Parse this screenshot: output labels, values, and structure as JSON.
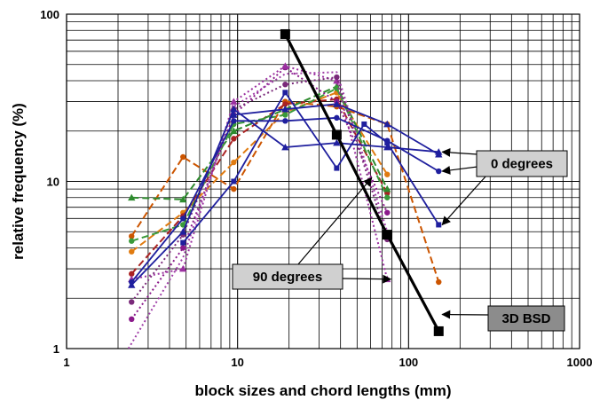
{
  "chart_data": {
    "type": "line",
    "xlabel": "block sizes and chord lengths (mm)",
    "ylabel": "relative frequency (%)",
    "xscale": "log",
    "yscale": "log",
    "xlim": [
      1,
      1000
    ],
    "ylim": [
      1,
      100
    ],
    "grid": true,
    "x_ticks": [
      "1",
      "10",
      "100",
      "1000"
    ],
    "y_ticks": [
      "1",
      "10",
      "100"
    ],
    "series": [
      {
        "group": "bsd",
        "color": "#000000",
        "marker": "square",
        "style": "solid",
        "width": 3.2,
        "points": [
          [
            19,
            76
          ],
          [
            38,
            19
          ],
          [
            75,
            4.8
          ],
          [
            150,
            1.27
          ]
        ]
      },
      {
        "group": "0deg",
        "color": "#1f1f9e",
        "marker": "triangle",
        "style": "solid",
        "width": 1.8,
        "points": [
          [
            2.4,
            2.4
          ],
          [
            4.8,
            5.0
          ],
          [
            9.5,
            27
          ],
          [
            19,
            16
          ],
          [
            38,
            17
          ],
          [
            75,
            16
          ],
          [
            150,
            15
          ]
        ]
      },
      {
        "group": "0deg",
        "color": "#1f1f9e",
        "marker": "circle",
        "style": "solid",
        "width": 1.8,
        "points": [
          [
            2.4,
            2.5
          ],
          [
            4.8,
            6.0
          ],
          [
            9.5,
            23
          ],
          [
            19,
            23
          ],
          [
            38,
            24
          ],
          [
            75,
            17.5
          ],
          [
            150,
            11.5
          ]
        ]
      },
      {
        "group": "0deg",
        "color": "#1f1f9e",
        "marker": "square",
        "style": "solid",
        "width": 1.8,
        "points": [
          [
            4.8,
            4.3
          ],
          [
            9.5,
            10
          ],
          [
            19,
            34
          ],
          [
            38,
            12
          ],
          [
            55,
            22
          ],
          [
            75,
            17
          ],
          [
            150,
            5.5
          ]
        ]
      },
      {
        "group": "0deg",
        "color": "#1f1f9e",
        "marker": "triangle",
        "style": "solid",
        "width": 1.8,
        "points": [
          [
            9.5,
            25
          ],
          [
            19,
            27
          ],
          [
            38,
            29
          ],
          [
            75,
            22
          ],
          [
            150,
            14.5
          ]
        ]
      },
      {
        "group": "90deg",
        "color": "#cc5500",
        "marker": "circle",
        "style": "dashed",
        "width": 2.0,
        "points": [
          [
            2.4,
            4.7
          ],
          [
            4.8,
            14
          ],
          [
            9.5,
            9
          ],
          [
            19,
            30
          ],
          [
            38,
            28
          ],
          [
            75,
            22
          ],
          [
            150,
            2.5
          ]
        ]
      },
      {
        "group": "90deg",
        "color": "#e07b10",
        "marker": "circle",
        "style": "dashed",
        "width": 2.0,
        "points": [
          [
            2.4,
            3.8
          ],
          [
            4.8,
            6.5
          ],
          [
            9.5,
            13
          ],
          [
            19,
            26
          ],
          [
            38,
            34
          ],
          [
            75,
            11
          ]
        ]
      },
      {
        "group": "90deg",
        "color": "#aa2222",
        "marker": "circle",
        "style": "dashed",
        "width": 2.0,
        "points": [
          [
            2.4,
            2.8
          ],
          [
            4.8,
            6.2
          ],
          [
            9.5,
            18
          ],
          [
            19,
            29
          ],
          [
            38,
            31
          ],
          [
            75,
            8.5
          ]
        ]
      },
      {
        "group": "90deg",
        "color": "#2e8b2e",
        "marker": "triangle",
        "style": "dashed",
        "width": 2.0,
        "points": [
          [
            2.4,
            8
          ],
          [
            4.8,
            7.8
          ],
          [
            9.5,
            20
          ],
          [
            19,
            27
          ],
          [
            38,
            37
          ],
          [
            75,
            9
          ]
        ]
      },
      {
        "group": "90deg",
        "color": "#3a9a3a",
        "marker": "circle",
        "style": "dashed",
        "width": 2.0,
        "points": [
          [
            2.4,
            4.4
          ],
          [
            4.8,
            5.5
          ],
          [
            9.5,
            22
          ],
          [
            19,
            25
          ],
          [
            38,
            36
          ],
          [
            75,
            8
          ]
        ]
      },
      {
        "group": "90deg",
        "color": "#8b1a8b",
        "marker": "circle",
        "style": "dotted",
        "width": 2.0,
        "points": [
          [
            2.4,
            1.5
          ],
          [
            4.8,
            4.0
          ],
          [
            9.5,
            25
          ],
          [
            19,
            48
          ],
          [
            38,
            30
          ],
          [
            75,
            6.5
          ]
        ]
      },
      {
        "group": "90deg",
        "color": "#9b30a0",
        "marker": "triangle",
        "style": "dotted",
        "width": 2.0,
        "points": [
          [
            2.4,
            2.6
          ],
          [
            4.8,
            3.0
          ],
          [
            9.5,
            30
          ],
          [
            19,
            49
          ],
          [
            38,
            40
          ],
          [
            75,
            2.6
          ]
        ]
      },
      {
        "group": "90deg",
        "color": "#a040a8",
        "marker": "none",
        "style": "dotted",
        "width": 2.0,
        "points": [
          [
            2.3,
            1.0
          ],
          [
            4.8,
            3.5
          ],
          [
            9.5,
            28
          ],
          [
            19,
            44
          ],
          [
            38,
            45
          ],
          [
            75,
            5
          ]
        ]
      },
      {
        "group": "90deg",
        "color": "#7a2a7a",
        "marker": "circle",
        "style": "dotted",
        "width": 2.0,
        "points": [
          [
            2.4,
            1.9
          ],
          [
            4.8,
            4.8
          ],
          [
            9.5,
            27
          ],
          [
            19,
            38
          ],
          [
            38,
            42
          ],
          [
            75,
            4.5
          ]
        ]
      }
    ],
    "annotations": [
      {
        "id": "zero",
        "text": "0 degrees",
        "box": "gray",
        "arrows": [
          [
            150,
            15
          ],
          [
            150,
            11.5
          ],
          [
            150,
            5.5
          ]
        ]
      },
      {
        "id": "ninety",
        "text": "90 degrees",
        "box": "gray",
        "arrows": [
          [
            75,
            2.6
          ],
          [
            58,
            10.5
          ]
        ]
      },
      {
        "id": "bsd",
        "text": "3D BSD",
        "box": "dark",
        "arrows": [
          [
            150,
            1.6
          ]
        ]
      }
    ]
  }
}
